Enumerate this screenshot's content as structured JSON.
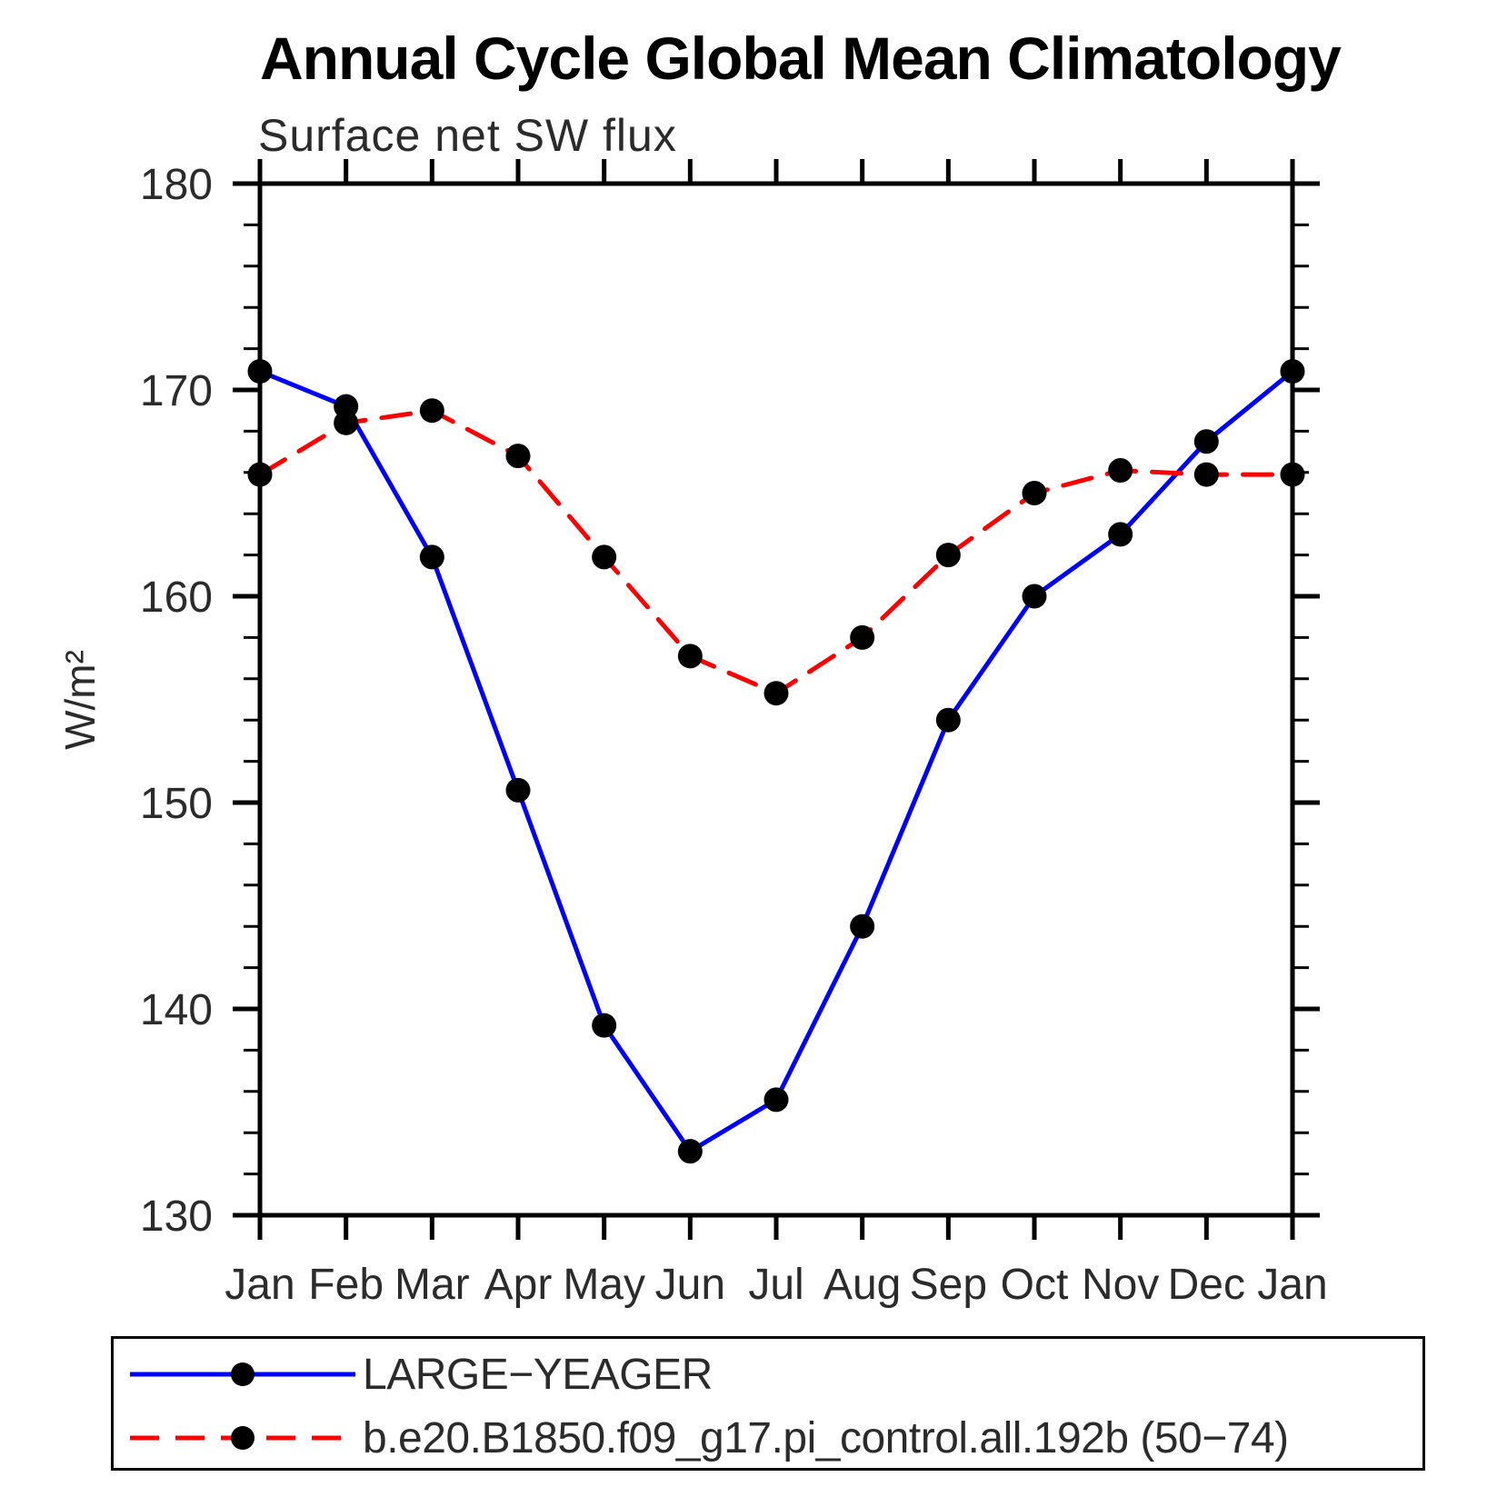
{
  "title": "Annual Cycle Global Mean Climatology",
  "subtitle": "Surface net SW flux",
  "y_axis_label": "W/m²",
  "legend": {
    "items": [
      {
        "label": "LARGE−YEAGER",
        "color": "#0000ff",
        "line_style": "solid",
        "marker_color": "#000000"
      },
      {
        "label": "b.e20.B1850.f09_g17.pi_control.all.192b (50−74)",
        "color": "#ff0000",
        "line_style": "dashed",
        "marker_color": "#000000"
      }
    ]
  },
  "chart_data": {
    "type": "line",
    "title": "Annual Cycle Global Mean Climatology",
    "subtitle": "Surface net SW flux",
    "xlabel": "",
    "ylabel": "W/m²",
    "x_categories": [
      "Jan",
      "Feb",
      "Mar",
      "Apr",
      "May",
      "Jun",
      "Jul",
      "Aug",
      "Sep",
      "Oct",
      "Nov",
      "Dec",
      "Jan"
    ],
    "ylim": [
      130,
      180
    ],
    "y_major_ticks": [
      130,
      140,
      150,
      160,
      170,
      180
    ],
    "y_minor_tick_interval": 2,
    "grid": false,
    "legend_position": "bottom",
    "axis_color": "#000000",
    "series": [
      {
        "name": "LARGE−YEAGER",
        "color": "#0000ff",
        "line_style": "solid",
        "marker": "dot",
        "marker_color": "#000000",
        "values": [
          170.9,
          169.2,
          161.9,
          150.6,
          139.2,
          133.1,
          135.6,
          144.0,
          154.0,
          160.0,
          163.0,
          167.5,
          170.9
        ]
      },
      {
        "name": "b.e20.B1850.f09_g17.pi_control.all.192b (50−74)",
        "color": "#ff0000",
        "line_style": "dashed",
        "marker": "dot",
        "marker_color": "#000000",
        "values": [
          165.9,
          168.4,
          169.0,
          166.8,
          161.9,
          157.1,
          155.3,
          158.0,
          162.0,
          165.0,
          166.1,
          165.9,
          165.9
        ]
      }
    ]
  }
}
